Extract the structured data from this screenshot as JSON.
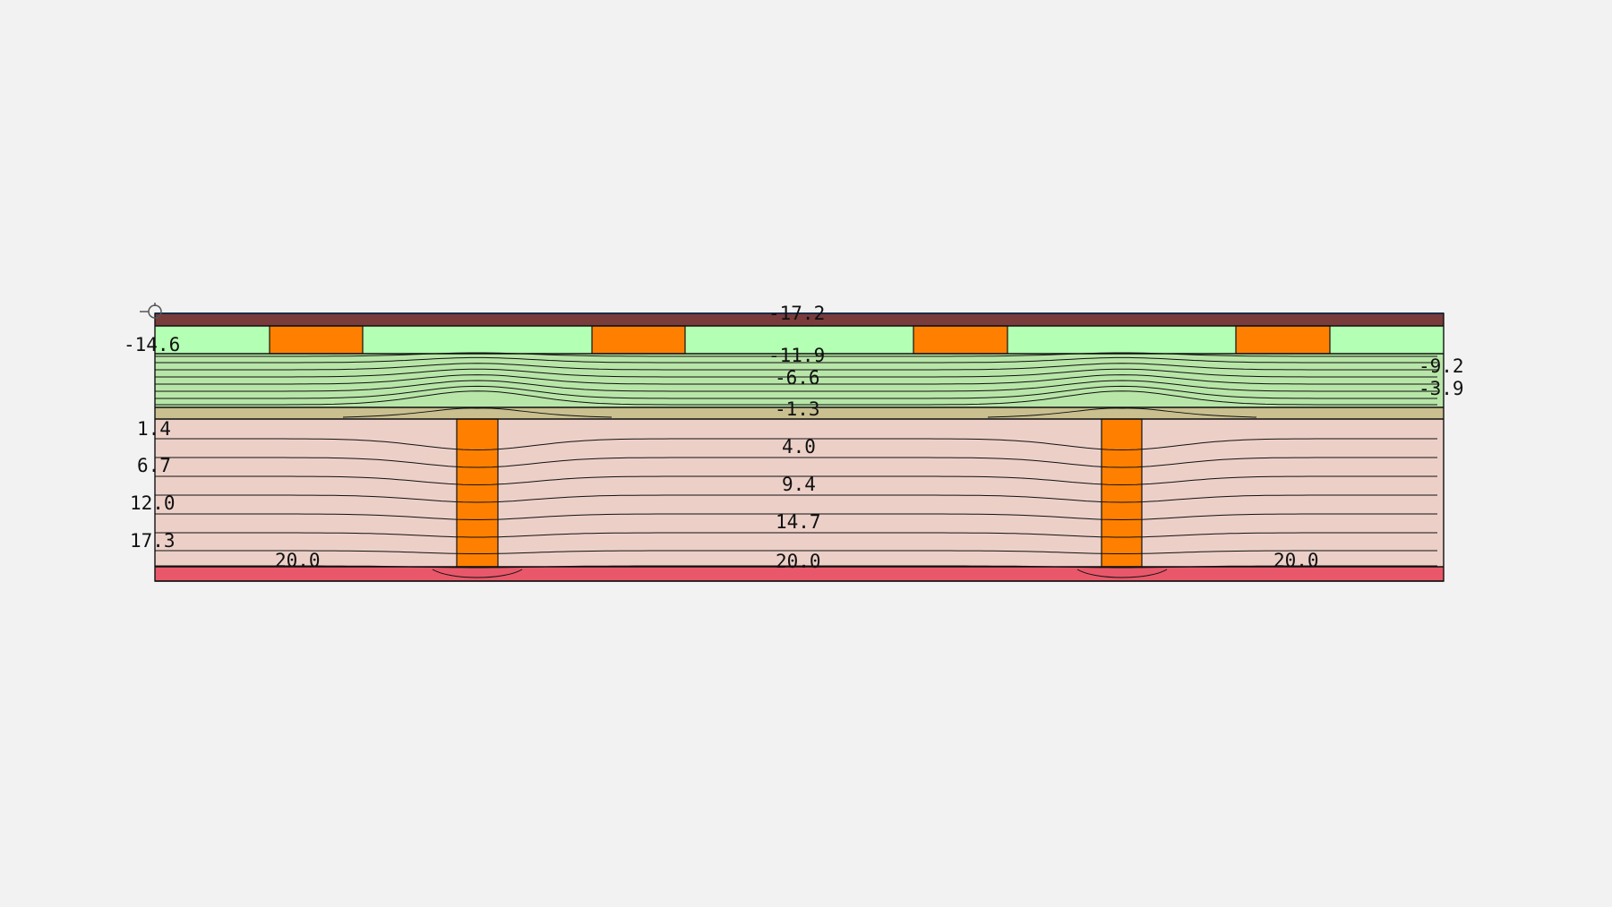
{
  "materials": {
    "roof_membrane": "#7a3b3b",
    "insulation_top": "#b3ffb3",
    "insulation": "#b8e6a8",
    "screed": "#c9bf8f",
    "masonry": "#ecd0c8",
    "timber": "#ff8000",
    "warm_side": "#e8586a",
    "edge_line": "#2e6fd8"
  },
  "isotherm_labels": [
    {
      "id": "iso-label-top",
      "text": "-17.2"
    },
    {
      "id": "iso-label-left-top",
      "text": "-14.6"
    },
    {
      "id": "iso-label-119",
      "text": "-11.9"
    },
    {
      "id": "iso-label-92",
      "text": "-9.2"
    },
    {
      "id": "iso-label-66",
      "text": "-6.6"
    },
    {
      "id": "iso-label-39",
      "text": "-3.9"
    },
    {
      "id": "iso-label-13",
      "text": "-1.3"
    },
    {
      "id": "iso-label-14",
      "text": "1.4"
    },
    {
      "id": "iso-label-40",
      "text": "4.0"
    },
    {
      "id": "iso-label-67",
      "text": "6.7"
    },
    {
      "id": "iso-label-94",
      "text": "9.4"
    },
    {
      "id": "iso-label-120",
      "text": "12.0"
    },
    {
      "id": "iso-label-147",
      "text": "14.7"
    },
    {
      "id": "iso-label-173",
      "text": "17.3"
    },
    {
      "id": "iso-label-200-left",
      "text": "20.0"
    },
    {
      "id": "iso-label-200-mid",
      "text": "20.0"
    },
    {
      "id": "iso-label-200-right",
      "text": "20.0"
    }
  ]
}
